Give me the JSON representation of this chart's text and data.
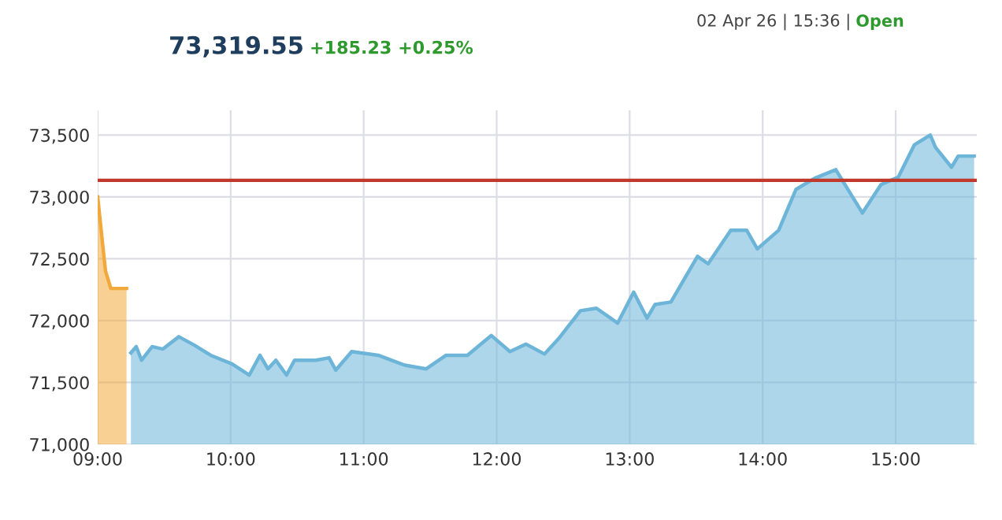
{
  "chart_data": {
    "type": "area",
    "title": "73,319.55",
    "subtitle": "+185.23 +0.25%",
    "annotations": [
      "02 Apr 26 | 15:36 |",
      "Open"
    ],
    "series": [
      {
        "color": "#f2a93b",
        "x": [
          9.0,
          9.039,
          9.059,
          9.099,
          9.217
        ],
        "values": [
          73000,
          72600,
          72400,
          72260,
          72260
        ]
      },
      {
        "color": "#6cb4d8",
        "x": [
          9.25,
          9.29,
          9.33,
          9.41,
          9.49,
          9.61,
          9.73,
          9.85,
          10.01,
          10.14,
          10.22,
          10.28,
          10.34,
          10.42,
          10.48,
          10.64,
          10.74,
          10.79,
          10.91,
          11.11,
          11.31,
          11.47,
          11.62,
          11.78,
          11.96,
          12.1,
          12.22,
          12.36,
          12.47,
          12.63,
          12.75,
          12.91,
          13.03,
          13.13,
          13.19,
          13.31,
          13.51,
          13.59,
          13.76,
          13.88,
          13.96,
          14.12,
          14.25,
          14.39,
          14.55,
          14.63,
          14.75,
          14.89,
          15.02,
          15.14,
          15.26,
          15.3,
          15.42,
          15.47,
          15.59
        ],
        "values": [
          71740,
          71790,
          71680,
          71790,
          71770,
          71870,
          71800,
          71720,
          71650,
          71560,
          71720,
          71610,
          71680,
          71560,
          71680,
          71680,
          71700,
          71600,
          71750,
          71720,
          71640,
          71610,
          71720,
          71720,
          71880,
          71750,
          71810,
          71730,
          71860,
          72080,
          72100,
          71980,
          72230,
          72020,
          72130,
          72150,
          72520,
          72460,
          72730,
          72730,
          72580,
          72730,
          73060,
          73150,
          73220,
          73080,
          72870,
          73100,
          73160,
          73420,
          73500,
          73400,
          73240,
          73330,
          73330
        ]
      }
    ],
    "ylim": [
      71000,
      73700
    ],
    "yticks": [
      {
        "value": 71000,
        "label": "71,000"
      },
      {
        "value": 71500,
        "label": "71,500"
      },
      {
        "value": 72000,
        "label": "72,000"
      },
      {
        "value": 72500,
        "label": "72,500"
      },
      {
        "value": 73000,
        "label": "73,000"
      },
      {
        "value": 73500,
        "label": "73,500"
      }
    ],
    "xlim": [
      9,
      15.61
    ],
    "xticks": [
      {
        "value": 9,
        "label": "09:00"
      },
      {
        "value": 10,
        "label": "10:00"
      },
      {
        "value": 11,
        "label": "11:00"
      },
      {
        "value": 12,
        "label": "12:00"
      },
      {
        "value": 13,
        "label": "13:00"
      },
      {
        "value": 14,
        "label": "14:00"
      },
      {
        "value": 15,
        "label": "15:00"
      }
    ],
    "ref_lines": [
      {
        "axis": "y",
        "value": 73134,
        "color": "#c0392b"
      }
    ],
    "grid": true
  }
}
